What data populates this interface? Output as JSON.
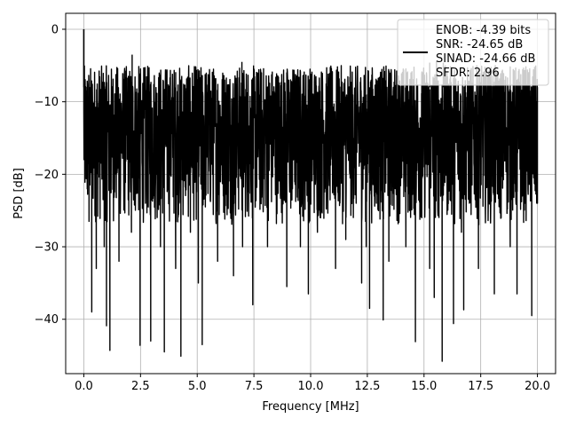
{
  "chart_data": {
    "type": "line",
    "title": "",
    "xlabel": "Frequency [MHz]",
    "ylabel": "PSD [dB]",
    "xlim": [
      -0.8,
      20.8
    ],
    "ylim": [
      -47.5,
      2.2
    ],
    "xticks": [
      0.0,
      2.5,
      5.0,
      7.5,
      10.0,
      12.5,
      15.0,
      17.5,
      20.0
    ],
    "xtick_labels": [
      "0.0",
      "2.5",
      "5.0",
      "7.5",
      "10.0",
      "12.5",
      "15.0",
      "17.5",
      "20.0"
    ],
    "yticks": [
      0,
      -10,
      -20,
      -30,
      -40
    ],
    "ytick_labels": [
      "0",
      "−10",
      "−20",
      "−30",
      "−40"
    ],
    "grid": true,
    "legend_position": "top-right",
    "legend_lines": [
      "ENOB: -4.39 bits",
      "SNR: -24.65 dB",
      "SINAD: -24.66 dB",
      "SFDR: 2.96"
    ],
    "series": [
      {
        "color": "#000000",
        "noise_band_db": [
          -27,
          -5
        ],
        "x": [
          0.0,
          0.03,
          0.09,
          0.15,
          0.23,
          0.35,
          0.55,
          0.72,
          0.9,
          1.0,
          1.05,
          1.15,
          1.35,
          1.55,
          1.75,
          2.1,
          2.3,
          2.48,
          2.72,
          2.95,
          3.25,
          3.38,
          3.55,
          3.72,
          4.05,
          4.28,
          4.45,
          4.7,
          5.05,
          5.22,
          5.5,
          5.9,
          6.3,
          6.6,
          7.0,
          7.3,
          7.45,
          7.8,
          8.1,
          8.5,
          8.95,
          9.2,
          9.55,
          9.9,
          10.3,
          10.75,
          11.1,
          11.55,
          11.9,
          12.25,
          12.45,
          12.6,
          12.9,
          13.2,
          13.45,
          13.8,
          14.2,
          14.62,
          14.9,
          15.25,
          15.45,
          15.8,
          16.05,
          16.3,
          16.65,
          16.75,
          17.0,
          17.4,
          17.8,
          18.1,
          18.4,
          18.8,
          19.1,
          19.45,
          19.75,
          19.9,
          20.0
        ],
        "y": [
          0.0,
          -14,
          -8,
          -22,
          -26.5,
          -39,
          -33,
          -12,
          -30,
          -40.9,
          -10,
          -44.3,
          -20,
          -32,
          -14,
          -28,
          -18,
          -43.6,
          -24,
          -43,
          -12,
          -30,
          -44.5,
          -22,
          -33,
          -45.1,
          -20,
          -28,
          -35,
          -43.5,
          -18,
          -32,
          -12,
          -34,
          -30,
          -16,
          -38,
          -24,
          -30,
          -14,
          -35.5,
          -22,
          -30,
          -36.5,
          -28,
          -20,
          -33,
          -29,
          -18,
          -35,
          -30,
          -38.5,
          -24,
          -40.1,
          -32,
          -18,
          -30,
          -43.1,
          -26,
          -33,
          -37,
          -45.8,
          -22,
          -40.6,
          -28,
          -38.7,
          -24,
          -33,
          -20,
          -36.5,
          -26,
          -30,
          -36.5,
          -24,
          -39.5,
          -20,
          -24
        ]
      }
    ],
    "spikes": [
      {
        "x": 0.0,
        "y": 0.0
      },
      {
        "x": 2.13,
        "y": -3.5
      },
      {
        "x": 6.97,
        "y": -4.5
      },
      {
        "x": 15.55,
        "y": -4.4
      },
      {
        "x": 15.25,
        "y": -4.6
      },
      {
        "x": 15.85,
        "y": -4.6
      }
    ]
  }
}
